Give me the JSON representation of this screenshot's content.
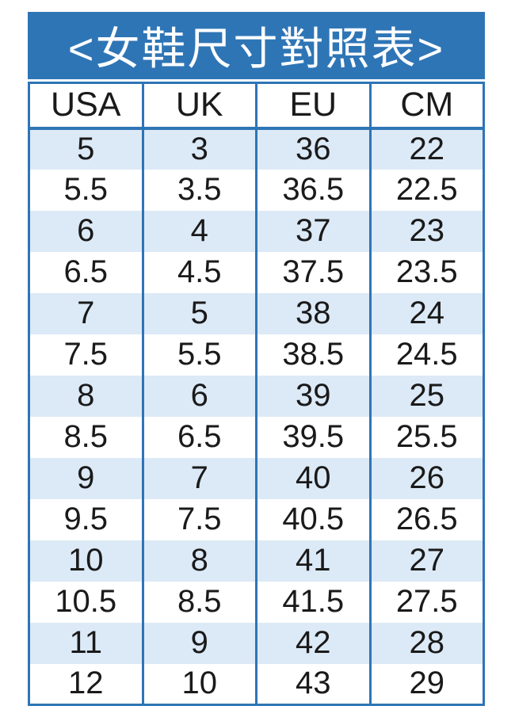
{
  "page_title": "<女鞋尺寸對照表>",
  "chart_data": {
    "type": "table",
    "title": "<女鞋尺寸對照表>",
    "title_meaning": "Women's shoe size conversion chart",
    "columns": [
      "USA",
      "UK",
      "EU",
      "CM"
    ],
    "rows": [
      [
        "5",
        "3",
        "36",
        "22"
      ],
      [
        "5.5",
        "3.5",
        "36.5",
        "22.5"
      ],
      [
        "6",
        "4",
        "37",
        "23"
      ],
      [
        "6.5",
        "4.5",
        "37.5",
        "23.5"
      ],
      [
        "7",
        "5",
        "38",
        "24"
      ],
      [
        "7.5",
        "5.5",
        "38.5",
        "24.5"
      ],
      [
        "8",
        "6",
        "39",
        "25"
      ],
      [
        "8.5",
        "6.5",
        "39.5",
        "25.5"
      ],
      [
        "9",
        "7",
        "40",
        "26"
      ],
      [
        "9.5",
        "7.5",
        "40.5",
        "26.5"
      ],
      [
        "10",
        "8",
        "41",
        "27"
      ],
      [
        "10.5",
        "8.5",
        "41.5",
        "27.5"
      ],
      [
        "11",
        "9",
        "42",
        "28"
      ],
      [
        "12",
        "10",
        "43",
        "29"
      ]
    ],
    "layout": {
      "stripe_start": "first data row shaded",
      "grid": "vertical column rules + outer border only"
    }
  },
  "colors": {
    "title_bar_bg": "#2e75b6",
    "border": "#2e75b6",
    "alt_row_bg": "#dce9f6",
    "row_bg": "#ffffff",
    "title_text": "#ffffff",
    "cell_text": "#1a1a1a"
  }
}
